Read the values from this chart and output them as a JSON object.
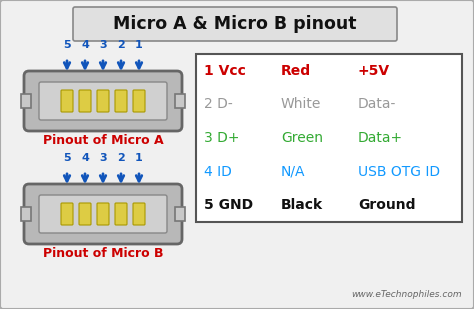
{
  "title": "Micro A & Micro B pinout",
  "bg_color": "#f0f0f0",
  "border_color": "#aaaaaa",
  "title_box_color": "#e0e0e0",
  "watermark": "www.eTechnophiles.com",
  "pinout_label_a": "Pinout of Micro A",
  "pinout_label_b": "Pinout of Micro B",
  "pinout_label_color": "#cc0000",
  "table_rows": [
    {
      "pin": "1 Vcc",
      "color_name": "Red",
      "desc": "+5V",
      "pin_color": "#cc0000",
      "name_color": "#cc0000",
      "desc_color": "#cc0000",
      "bold": true
    },
    {
      "pin": "2 D-",
      "color_name": "White",
      "desc": "Data-",
      "pin_color": "#999999",
      "name_color": "#999999",
      "desc_color": "#999999",
      "bold": false
    },
    {
      "pin": "3 D+",
      "color_name": "Green",
      "desc": "Data+",
      "pin_color": "#33aa33",
      "name_color": "#33aa33",
      "desc_color": "#33aa33",
      "bold": false
    },
    {
      "pin": "4 ID",
      "color_name": "N/A",
      "desc": "USB OTG ID",
      "pin_color": "#1199ff",
      "name_color": "#1199ff",
      "desc_color": "#1199ff",
      "bold": false
    },
    {
      "pin": "5 GND",
      "color_name": "Black",
      "desc": "Ground",
      "pin_color": "#111111",
      "name_color": "#111111",
      "desc_color": "#111111",
      "bold": true
    }
  ],
  "connector_fill": "#b8b8b8",
  "connector_edge": "#666666",
  "connector_inner_fill": "#d0d0d0",
  "connector_inner_edge": "#888888",
  "pin_fill": "#ddcc44",
  "pin_edge": "#aa9900",
  "arrow_color": "#1155bb",
  "pin_numbers": [
    "5",
    "4",
    "3",
    "2",
    "1"
  ],
  "pin_number_color": "#1155bb",
  "tab_fill": "#c8c8c8",
  "tab_edge": "#777777"
}
